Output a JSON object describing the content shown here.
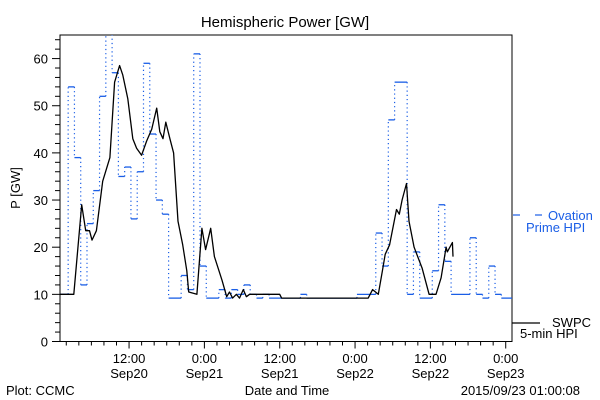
{
  "chart_data": {
    "type": "line",
    "title": "Hemispheric Power [GW]",
    "xlabel": "Date and Time",
    "ylabel": "P [GW]",
    "x_units": "hours since 2015-09-20 00:00 UT",
    "xlim": [
      1,
      73
    ],
    "ylim": [
      0,
      65
    ],
    "y_ticks": [
      0,
      10,
      20,
      30,
      40,
      50,
      60
    ],
    "y_tick_labels": [
      "0",
      "10",
      "20",
      "30",
      "40",
      "50",
      "60"
    ],
    "x_ticks": [
      12,
      24,
      36,
      48,
      60,
      72
    ],
    "x_tick_labels": [
      {
        "time": "12:00",
        "date": "Sep20"
      },
      {
        "time": "0:00",
        "date": "Sep21"
      },
      {
        "time": "12:00",
        "date": "Sep21"
      },
      {
        "time": "0:00",
        "date": "Sep22"
      },
      {
        "time": "12:00",
        "date": "Sep22"
      },
      {
        "time": "0:00",
        "date": "Sep23"
      }
    ],
    "grid": false,
    "legend_placement": "right",
    "series": [
      {
        "name": "SWPC 5-min HPI",
        "legend_line1": "SWPC",
        "legend_line2": "5-min HPI",
        "color": "#000000",
        "style": "solid",
        "points": [
          [
            1.0,
            10
          ],
          [
            3.2,
            10
          ],
          [
            4.45,
            29
          ],
          [
            5.1,
            23.5
          ],
          [
            5.7,
            23.5
          ],
          [
            6.1,
            21.5
          ],
          [
            6.8,
            23.5
          ],
          [
            7.8,
            34
          ],
          [
            8.95,
            39
          ],
          [
            9.7,
            55
          ],
          [
            10.5,
            58.5
          ],
          [
            11.0,
            56.5
          ],
          [
            11.8,
            51.5
          ],
          [
            12.6,
            43
          ],
          [
            13.2,
            41
          ],
          [
            14.0,
            39.5
          ],
          [
            14.8,
            42.5
          ],
          [
            15.6,
            45
          ],
          [
            16.4,
            49.5
          ],
          [
            16.9,
            44.5
          ],
          [
            17.4,
            43
          ],
          [
            17.85,
            46.5
          ],
          [
            18.5,
            43
          ],
          [
            19.1,
            40
          ],
          [
            19.8,
            25.5
          ],
          [
            20.55,
            20.5
          ],
          [
            21.2,
            15
          ],
          [
            21.5,
            10.5
          ],
          [
            22.8,
            10
          ],
          [
            23.6,
            24
          ],
          [
            24.2,
            19.5
          ],
          [
            25.0,
            24
          ],
          [
            25.6,
            18
          ],
          [
            26.8,
            13
          ],
          [
            27.55,
            9.5
          ],
          [
            28.0,
            10.5
          ],
          [
            28.5,
            9.2
          ],
          [
            29.1,
            10
          ],
          [
            29.6,
            9.2
          ],
          [
            30.2,
            11
          ],
          [
            30.7,
            9.5
          ],
          [
            31.2,
            10
          ],
          [
            36.0,
            10
          ],
          [
            36.3,
            9.2
          ],
          [
            50.1,
            9.2
          ],
          [
            50.8,
            11
          ],
          [
            51.7,
            10
          ],
          [
            52.35,
            15
          ],
          [
            52.8,
            18.5
          ],
          [
            53.5,
            20.5
          ],
          [
            54.6,
            28
          ],
          [
            55.05,
            27
          ],
          [
            55.5,
            30
          ],
          [
            56.2,
            33.5
          ],
          [
            56.6,
            25.5
          ],
          [
            57.4,
            20
          ],
          [
            58.7,
            15.5
          ],
          [
            59.8,
            10
          ],
          [
            60.9,
            10
          ],
          [
            61.7,
            13.5
          ],
          [
            62.5,
            20
          ],
          [
            62.7,
            19
          ],
          [
            63.5,
            21
          ],
          [
            63.6,
            18
          ]
        ]
      },
      {
        "name": "Ovation Prime HPI",
        "legend_line1": "Ovation",
        "legend_line2": "Prime HPI",
        "color": "#1a5ee6",
        "style": "step",
        "steps": [
          [
            1.0,
            10
          ],
          [
            2.3,
            54
          ],
          [
            3.3,
            39
          ],
          [
            4.3,
            12
          ],
          [
            5.3,
            25
          ],
          [
            6.3,
            32
          ],
          [
            7.3,
            52
          ],
          [
            8.3,
            66
          ],
          [
            9.3,
            57
          ],
          [
            10.3,
            35
          ],
          [
            11.3,
            37
          ],
          [
            12.3,
            26
          ],
          [
            13.3,
            36
          ],
          [
            14.3,
            59
          ],
          [
            15.3,
            44
          ],
          [
            16.3,
            30
          ],
          [
            17.3,
            27
          ],
          [
            18.3,
            9.2
          ],
          [
            20.3,
            14
          ],
          [
            21.3,
            11
          ],
          [
            22.3,
            61
          ],
          [
            23.3,
            16
          ],
          [
            24.3,
            9.2
          ],
          [
            26.3,
            11
          ],
          [
            27.3,
            9.2
          ],
          [
            28.3,
            11
          ],
          [
            29.3,
            10
          ],
          [
            30.3,
            12
          ],
          [
            31.3,
            10
          ],
          [
            32.3,
            9.2
          ],
          [
            33.3,
            10
          ],
          [
            34.3,
            9.2
          ],
          [
            39.3,
            10
          ],
          [
            40.3,
            9.2
          ],
          [
            48.3,
            10
          ],
          [
            51.3,
            23
          ],
          [
            52.3,
            16
          ],
          [
            53.3,
            47
          ],
          [
            54.3,
            55
          ],
          [
            56.3,
            10
          ],
          [
            57.3,
            19
          ],
          [
            58.3,
            9.2
          ],
          [
            60.3,
            15
          ],
          [
            61.3,
            29
          ],
          [
            62.3,
            17
          ],
          [
            63.3,
            10
          ],
          [
            66.3,
            22
          ],
          [
            67.3,
            10
          ],
          [
            68.3,
            9.2
          ],
          [
            69.3,
            16
          ],
          [
            70.3,
            10
          ],
          [
            71.3,
            9.2
          ]
        ],
        "end": 73
      }
    ]
  },
  "footer": {
    "left": "Plot: CCMC",
    "center": "Date and Time",
    "right": "2015/09/23 01:00:08"
  }
}
